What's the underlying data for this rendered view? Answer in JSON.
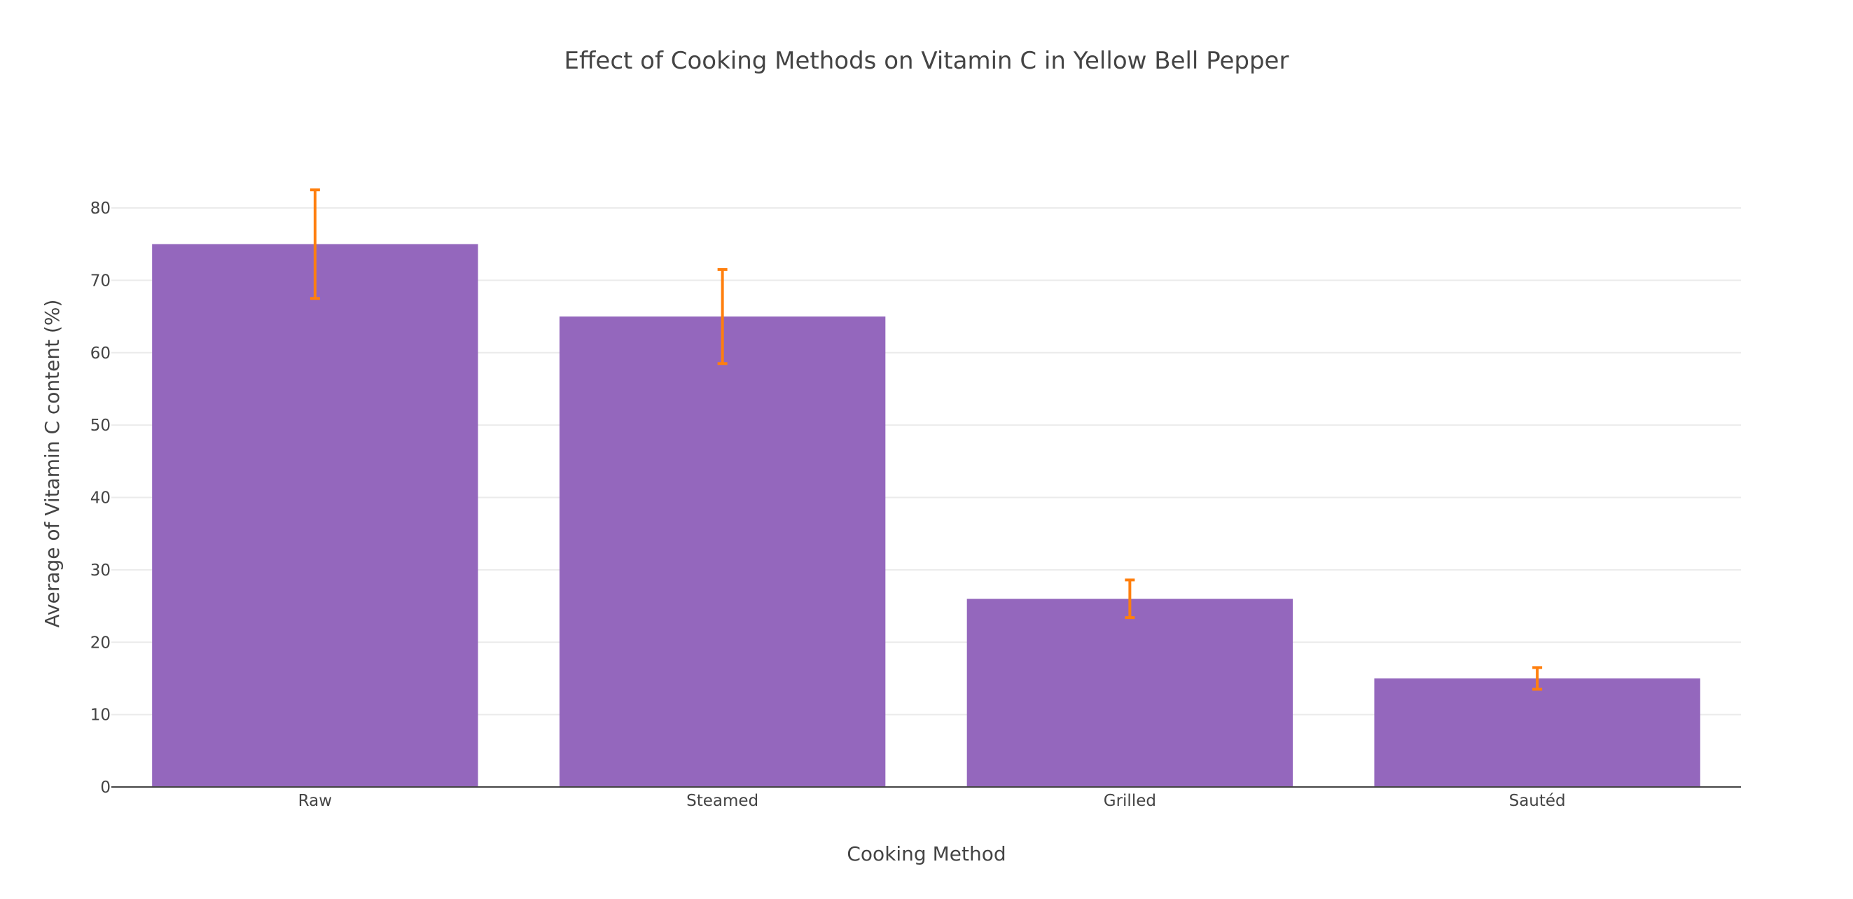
{
  "chart_data": {
    "type": "bar",
    "title": "Effect of Cooking Methods on Vitamin C in Yellow Bell Pepper",
    "xlabel": "Cooking Method",
    "ylabel": "Average of Vitamin C content (%)",
    "categories": [
      "Raw",
      "Steamed",
      "Grilled",
      "Sautéd"
    ],
    "values": [
      75,
      65,
      26,
      15
    ],
    "error_plus": [
      7.5,
      6.5,
      2.6,
      1.5
    ],
    "error_minus": [
      7.5,
      6.5,
      2.6,
      1.5
    ],
    "ylim": [
      0,
      89
    ],
    "yticks": [
      0,
      10,
      20,
      30,
      40,
      50,
      60,
      70,
      80
    ],
    "ytick_labels": [
      "0",
      "10",
      "20",
      "30",
      "40",
      "50",
      "60",
      "70",
      "80"
    ],
    "grid": true,
    "legend": "none",
    "colors": {
      "bar": "#9467bd",
      "error": "#ff7f0e",
      "grid": "#ebebeb",
      "axis": "#444444",
      "text": "#444444"
    }
  }
}
